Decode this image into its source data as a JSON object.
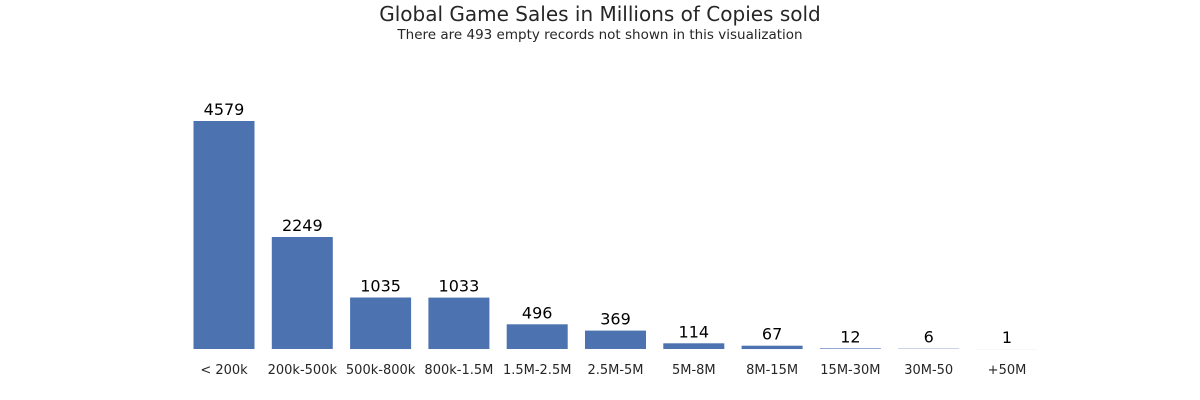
{
  "title": "Global Game Sales in Millions of Copies sold",
  "subtitle": "There are 493 empty records not shown in this visualization",
  "colors": {
    "bar": "#4c72b0",
    "background": "#ffffff",
    "text": "#262626"
  },
  "chart_data": {
    "type": "bar",
    "title": "Global Game Sales in Millions of Copies sold",
    "subtitle": "There are 493 empty records not shown in this visualization",
    "xlabel": "",
    "ylabel": "",
    "categories": [
      "< 200k",
      "200k-500k",
      "500k-800k",
      "800k-1.5M",
      "1.5M-2.5M",
      "2.5M-5M",
      "5M-8M",
      "8M-15M",
      "15M-30M",
      "30M-50",
      "+50M"
    ],
    "values": [
      4579,
      2249,
      1035,
      1033,
      496,
      369,
      114,
      67,
      12,
      6,
      1
    ],
    "data_labels": [
      "4579",
      "2249",
      "1035",
      "1033",
      "496",
      "369",
      "114",
      "67",
      "12",
      "6",
      "1"
    ],
    "ylim": [
      0,
      4579
    ],
    "grid": false,
    "legend": "none",
    "y_axis_visible": false
  }
}
